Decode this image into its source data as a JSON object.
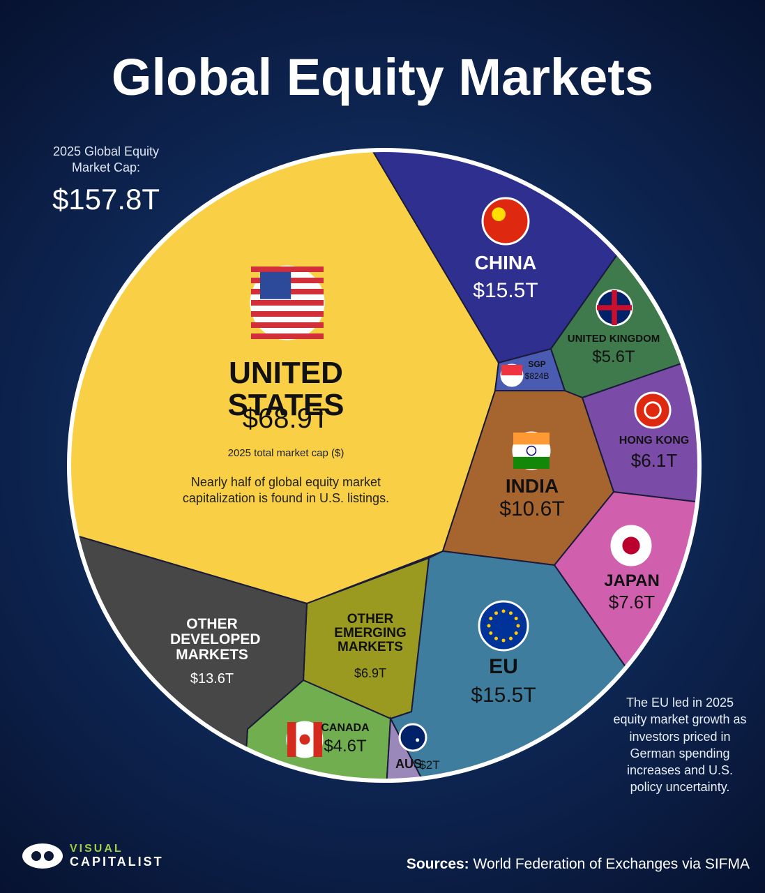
{
  "chart_data": {
    "type": "voronoi",
    "title": "Global Equity Markets",
    "subtitle": "2025 Global Equity Market Cap:",
    "total": {
      "value": 157.8,
      "label": "$157.8T"
    },
    "categories": [
      "UNITED STATES",
      "CHINA",
      "UNITED KINGDOM",
      "SGP",
      "HONG KONG",
      "INDIA",
      "JAPAN",
      "EU",
      "OTHER EMERGING MARKETS",
      "CANADA",
      "AUS",
      "OTHER DEVELOPED MARKETS"
    ],
    "values": [
      68.9,
      15.5,
      5.6,
      0.824,
      6.1,
      10.6,
      7.6,
      15.5,
      6.9,
      4.6,
      2,
      13.6
    ],
    "value_labels": [
      "$68.9T",
      "$15.5T",
      "$5.6T",
      "$824B",
      "$6.1T",
      "$10.6T",
      "$7.6T",
      "$15.5T",
      "$6.9T",
      "$4.6T",
      "$2T",
      "$13.6T"
    ],
    "colors": [
      "#f8cf45",
      "#2f2f8f",
      "#3f7a4c",
      "#4a5bb2",
      "#7a4ca8",
      "#a6642f",
      "#d05fae",
      "#3e7d9d",
      "#999a1f",
      "#70ae4f",
      "#9b88bb",
      "#474747"
    ],
    "us_caption": "2025 total market cap ($)",
    "us_annotation": "Nearly half of global equity market capitalization is found in U.S. listings.",
    "eu_annotation": "The EU led in 2025 equity market growth as investors priced in German spending increases and U.S. policy uncertainty.",
    "source_label": "Sources:",
    "source": "World Federation of Exchanges via SIFMA",
    "brand": [
      "VISUAL",
      "CAPITALIST"
    ]
  }
}
